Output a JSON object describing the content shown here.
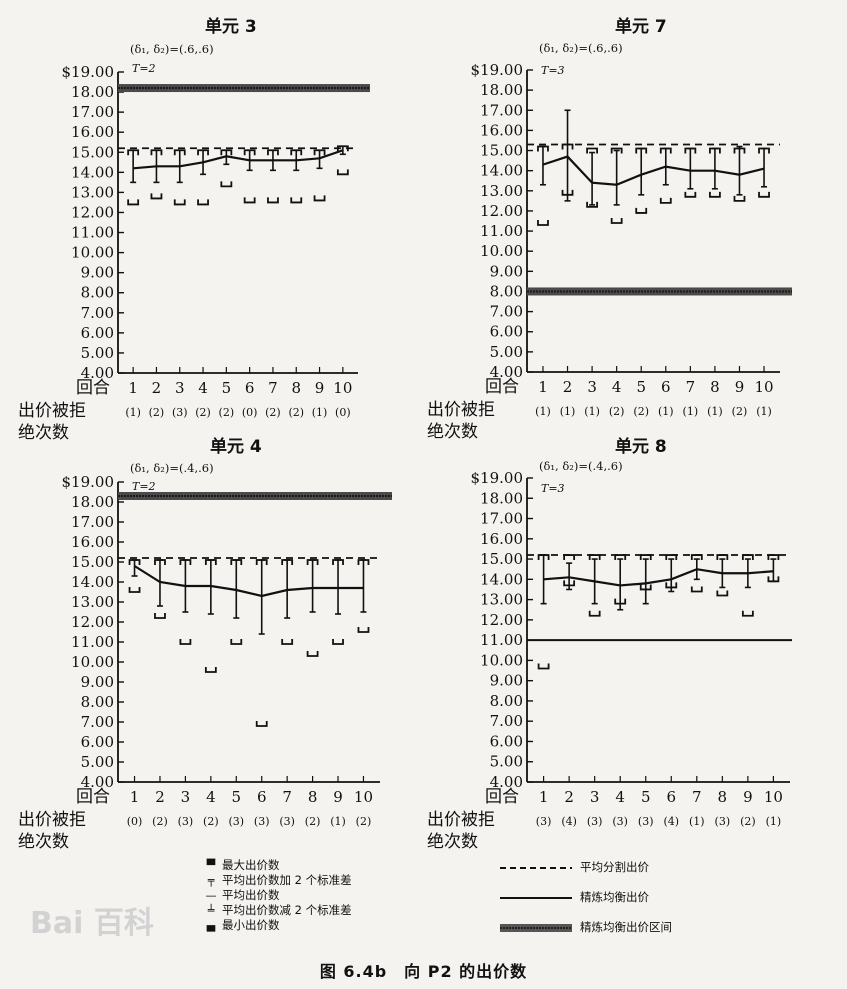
{
  "figure_caption": "图 6.4b　向 P2 的出价数",
  "legend": {
    "max": "最大出价数",
    "mean_plus": "平均出价数加 2 个标准差",
    "mean": "平均出价数",
    "mean_minus": "平均出价数减 2 个标准差",
    "min": "最小出价数",
    "equal_split": "平均分割出价",
    "refined_eq": "精炼均衡出价",
    "refined_interval": "精炼均衡出价区间"
  },
  "watermark": "Bai 百科",
  "chart_data": [
    {
      "type": "line",
      "title": "单元 3",
      "params": "(δ₁, δ₂)=(.6,.6)",
      "t_label": "T=2",
      "ylim": [
        4,
        19
      ],
      "y_ticks": [
        "$19.00",
        "18.00",
        "17.00",
        "16.00",
        "15.00",
        "14.00",
        "13.00",
        "12.00",
        "11.00",
        "10.00",
        "9.00",
        "8.00",
        "7.00",
        "6.00",
        "5.00",
        "4.00"
      ],
      "x_title": "回合",
      "rejection_title": "出价被拒",
      "rejection_title2": "绝次数",
      "x": [
        "1",
        "2",
        "3",
        "4",
        "5",
        "6",
        "7",
        "8",
        "9",
        "10"
      ],
      "rejections": [
        "(1)",
        "(2)",
        "(3)",
        "(2)",
        "(2)",
        "(0)",
        "(2)",
        "(2)",
        "(1)",
        "(0)"
      ],
      "mean": [
        14.2,
        14.3,
        14.3,
        14.5,
        14.8,
        14.6,
        14.6,
        14.6,
        14.7,
        15.1
      ],
      "upper": [
        15.1,
        15.1,
        15.1,
        15.1,
        15.1,
        15.1,
        15.1,
        15.1,
        15.1,
        15.3
      ],
      "lower": [
        13.5,
        13.5,
        13.5,
        13.9,
        14.4,
        14.1,
        14.1,
        14.1,
        14.2,
        14.9
      ],
      "max": [
        15.0,
        15.0,
        15.0,
        15.0,
        15.0,
        15.0,
        15.0,
        15.0,
        15.0,
        15.2
      ],
      "min": [
        12.5,
        12.8,
        12.5,
        12.5,
        13.4,
        12.6,
        12.6,
        12.6,
        12.7,
        14.0
      ],
      "equal_split": 15.2,
      "refined_eq": null,
      "refined_interval": 18.2
    },
    {
      "type": "line",
      "title": "单元 7",
      "params": "(δ₁, δ₂)=(.6,.6)",
      "t_label": "T=3",
      "ylim": [
        4,
        19
      ],
      "y_ticks": [
        "$19.00",
        "18.00",
        "17.00",
        "16.00",
        "15.00",
        "14.00",
        "13.00",
        "12.00",
        "11.00",
        "10.00",
        "9.00",
        "8.00",
        "7.00",
        "6.00",
        "5.00",
        "4.00"
      ],
      "x_title": "回合",
      "rejection_title": "出价被拒",
      "rejection_title2": "绝次数",
      "x": [
        "1",
        "2",
        "3",
        "4",
        "5",
        "6",
        "7",
        "8",
        "9",
        "10"
      ],
      "rejections": [
        "(1)",
        "(1)",
        "(1)",
        "(2)",
        "(2)",
        "(1)",
        "(1)",
        "(1)",
        "(2)",
        "(1)"
      ],
      "mean": [
        14.3,
        14.7,
        13.4,
        13.3,
        13.8,
        14.2,
        14.0,
        14.0,
        13.8,
        14.1
      ],
      "upper": [
        15.2,
        17.0,
        14.9,
        15.0,
        15.1,
        15.1,
        15.1,
        15.1,
        15.2,
        15.1
      ],
      "lower": [
        13.3,
        12.5,
        12.3,
        12.3,
        12.8,
        13.3,
        13.1,
        13.1,
        12.8,
        13.2
      ],
      "max": [
        15.1,
        15.2,
        15.0,
        15.0,
        15.0,
        15.0,
        15.0,
        15.0,
        15.0,
        15.0
      ],
      "min": [
        11.4,
        12.9,
        12.3,
        11.5,
        12.0,
        12.5,
        12.8,
        12.8,
        12.6,
        12.8
      ],
      "equal_split": 15.3,
      "refined_eq": null,
      "refined_interval": 8.0
    },
    {
      "type": "line",
      "title": "单元 4",
      "params": "(δ₁, δ₂)=(.4,.6)",
      "t_label": "T=2",
      "ylim": [
        4,
        19
      ],
      "y_ticks": [
        "$19.00",
        "18.00",
        "17.00",
        "16.00",
        "15.00",
        "14.00",
        "13.00",
        "12.00",
        "11.00",
        "10.00",
        "9.00",
        "8.00",
        "7.00",
        "6.00",
        "5.00",
        "4.00"
      ],
      "x_title": "回合",
      "rejection_title": "出价被拒",
      "rejection_title2": "绝次数",
      "x": [
        "1",
        "2",
        "3",
        "4",
        "5",
        "6",
        "7",
        "8",
        "9",
        "10"
      ],
      "rejections": [
        "(0)",
        "(2)",
        "(3)",
        "(2)",
        "(3)",
        "(3)",
        "(3)",
        "(2)",
        "(1)",
        "(2)"
      ],
      "mean": [
        14.8,
        14.0,
        13.8,
        13.8,
        13.6,
        13.3,
        13.6,
        13.7,
        13.7,
        13.7
      ],
      "upper": [
        15.1,
        15.1,
        15.1,
        15.1,
        15.1,
        15.1,
        15.1,
        15.1,
        15.1,
        15.1
      ],
      "lower": [
        14.3,
        12.8,
        12.5,
        12.4,
        12.2,
        11.4,
        12.2,
        12.5,
        12.4,
        12.5
      ],
      "max": [
        15.0,
        15.0,
        15.0,
        15.0,
        15.0,
        15.0,
        15.0,
        15.0,
        15.0,
        15.0
      ],
      "min": [
        13.6,
        12.3,
        11.0,
        9.6,
        11.0,
        6.9,
        11.0,
        10.4,
        11.0,
        11.6
      ],
      "equal_split": 15.2,
      "refined_eq": null,
      "refined_interval": 18.3
    },
    {
      "type": "line",
      "title": "单元 8",
      "params": "(δ₁, δ₂)=(.4,.6)",
      "t_label": "T=3",
      "ylim": [
        4,
        19
      ],
      "y_ticks": [
        "$19.00",
        "18.00",
        "17.00",
        "16.00",
        "15.00",
        "14.00",
        "13.00",
        "12.00",
        "11.00",
        "10.00",
        "9.00",
        "8.00",
        "7.00",
        "6.00",
        "5.00",
        "4.00"
      ],
      "x_title": "回合",
      "rejection_title": "出价被拒",
      "rejection_title2": "绝次数",
      "x": [
        "1",
        "2",
        "3",
        "4",
        "5",
        "6",
        "7",
        "8",
        "9",
        "10"
      ],
      "rejections": [
        "(3)",
        "(4)",
        "(3)",
        "(3)",
        "(3)",
        "(4)",
        "(1)",
        "(3)",
        "(2)",
        "(1)"
      ],
      "mean": [
        14.0,
        14.1,
        13.9,
        13.7,
        13.8,
        14.0,
        14.5,
        14.3,
        14.3,
        14.4
      ],
      "upper": [
        15.2,
        14.8,
        15.0,
        15.0,
        15.0,
        15.0,
        15.0,
        15.0,
        15.0,
        15.0
      ],
      "lower": [
        12.8,
        13.5,
        12.8,
        12.5,
        12.8,
        13.4,
        14.0,
        13.6,
        13.6,
        13.9
      ],
      "max": [
        15.1,
        15.1,
        15.1,
        15.1,
        15.1,
        15.1,
        15.1,
        15.1,
        15.1,
        15.1
      ],
      "min": [
        9.7,
        13.8,
        12.3,
        12.9,
        13.6,
        13.7,
        13.5,
        13.3,
        12.3,
        14.0
      ],
      "equal_split": 15.2,
      "refined_eq": 11.0,
      "refined_interval": null
    }
  ]
}
